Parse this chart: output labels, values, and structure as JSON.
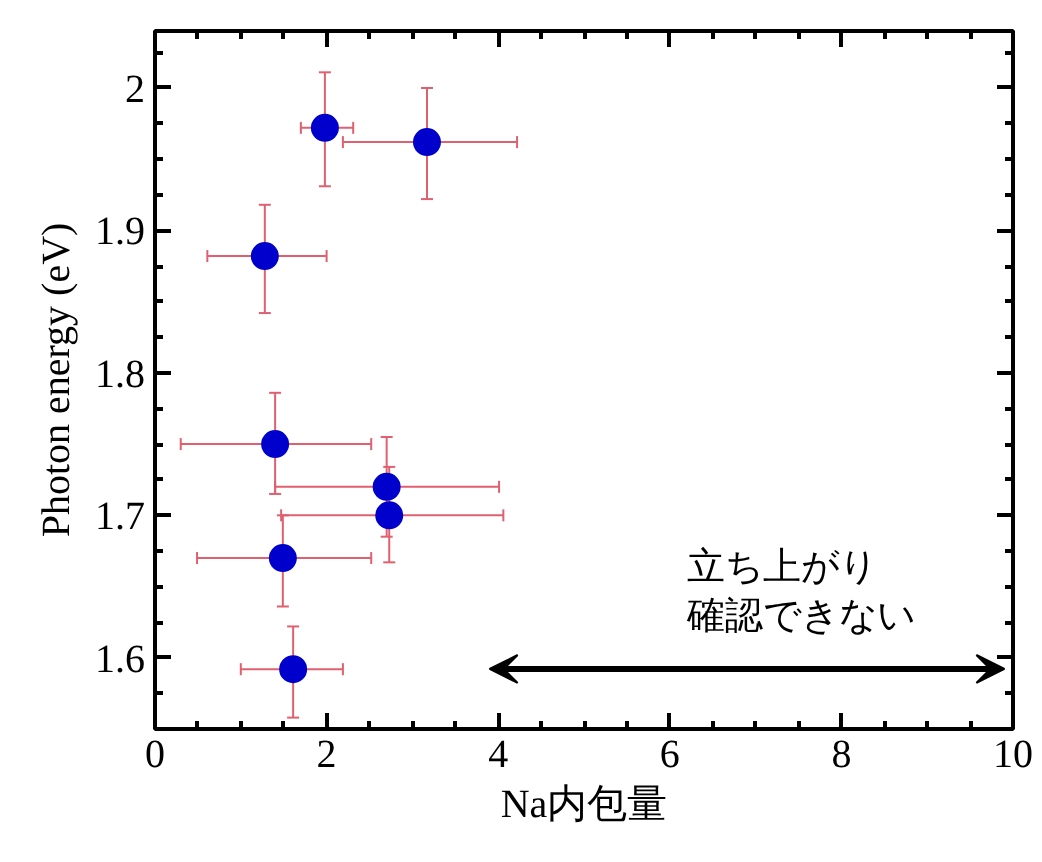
{
  "chart_data": {
    "type": "scatter",
    "xlabel": "Na内包量",
    "ylabel": "Photon energy (eV)",
    "x": [
      1.98,
      3.17,
      1.28,
      1.4,
      2.7,
      2.73,
      1.49,
      1.61
    ],
    "values": [
      1.972,
      1.962,
      1.882,
      1.75,
      1.72,
      1.7,
      1.67,
      1.592
    ],
    "errors": [
      [
        1.931,
        2.011
      ],
      [
        1.922,
        2.0
      ],
      [
        1.842,
        1.918
      ],
      [
        1.715,
        1.786
      ],
      [
        1.685,
        1.755
      ],
      [
        1.667,
        1.734
      ],
      [
        1.636,
        1.7
      ],
      [
        1.558,
        1.622
      ]
    ],
    "xerrors": [
      [
        1.7,
        2.31
      ],
      [
        2.19,
        4.22
      ],
      [
        0.61,
        2.0
      ],
      [
        0.3,
        2.52
      ],
      [
        1.4,
        4.01
      ],
      [
        1.47,
        4.06
      ],
      [
        0.49,
        2.52
      ],
      [
        1.0,
        2.19
      ]
    ],
    "color": "#0000cc",
    "marker": "circle",
    "grid": false,
    "xlim": [
      0,
      10
    ],
    "ylim": [
      1.55,
      2.04
    ],
    "xticks": [
      0,
      2,
      4,
      6,
      8,
      10
    ],
    "yticks": [
      1.6,
      1.7,
      1.8,
      1.9,
      2
    ],
    "annotations": [
      "立ち上がり",
      "確認できない"
    ]
  }
}
